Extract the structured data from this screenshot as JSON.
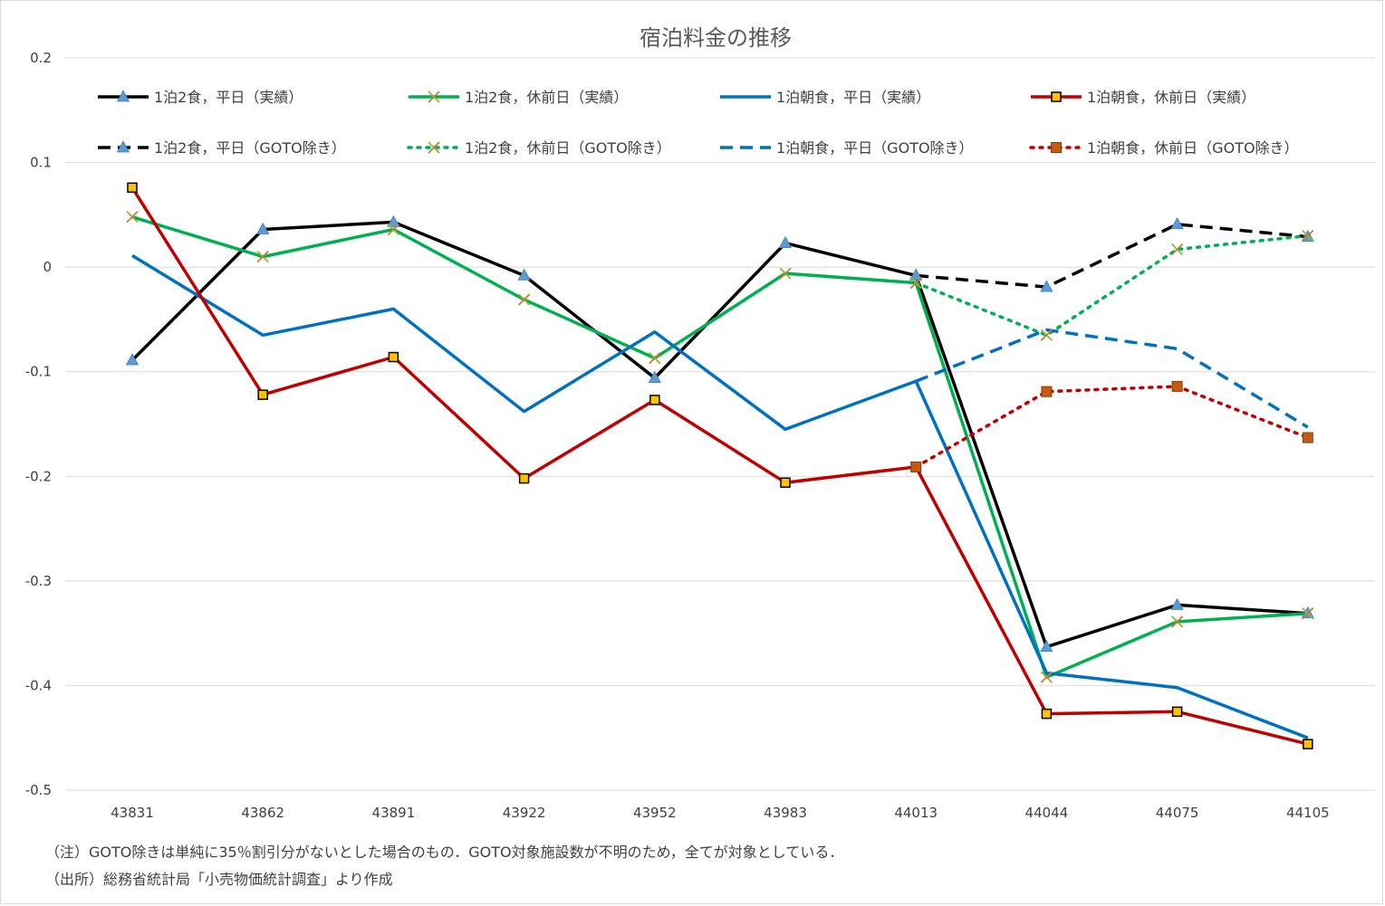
{
  "chart_data": {
    "type": "line",
    "title": "宿泊料金の推移",
    "x": [
      "43831",
      "43862",
      "43891",
      "43922",
      "43952",
      "43983",
      "44013",
      "44044",
      "44075",
      "44105"
    ],
    "ylim": [
      -0.5,
      0.2
    ],
    "yticks": [
      "0.2",
      "0.1",
      "0",
      "-0.1",
      "-0.2",
      "-0.3",
      "-0.4",
      "-0.5"
    ],
    "grid": true,
    "legend_position": "top",
    "series": [
      {
        "name": "1泊2食，平日（実績）",
        "color": "#000000",
        "dash": "solid",
        "marker": "triangle",
        "values": [
          -0.089,
          0.036,
          0.043,
          -0.008,
          -0.106,
          0.023,
          -0.008,
          -0.363,
          -0.323,
          -0.331
        ]
      },
      {
        "name": "1泊2食，休前日（実績）",
        "color": "#00b050",
        "dash": "solid",
        "marker": "x",
        "values": [
          0.048,
          0.01,
          0.036,
          -0.031,
          -0.087,
          -0.006,
          -0.015,
          -0.392,
          -0.339,
          -0.331
        ]
      },
      {
        "name": "1泊朝食，平日（実績）",
        "color": "#0070c0",
        "dash": "solid",
        "marker": "none",
        "values": [
          0.011,
          -0.065,
          -0.04,
          -0.138,
          -0.062,
          -0.155,
          -0.109,
          -0.388,
          -0.402,
          -0.45
        ]
      },
      {
        "name": "1泊朝食，休前日（実績）",
        "color": "#c00000",
        "dash": "solid",
        "marker": "square-yellow",
        "values": [
          0.076,
          -0.122,
          -0.086,
          -0.202,
          -0.127,
          -0.206,
          -0.191,
          -0.427,
          -0.425,
          -0.456
        ]
      },
      {
        "name": "1泊2食，平日（GOTO除き）",
        "color": "#000000",
        "dash": "dash",
        "marker": "triangle",
        "values": [
          null,
          null,
          null,
          null,
          null,
          null,
          -0.008,
          -0.019,
          0.041,
          0.029
        ]
      },
      {
        "name": "1泊2食，休前日（GOTO除き）",
        "color": "#00b050",
        "dash": "dot",
        "marker": "x",
        "values": [
          null,
          null,
          null,
          null,
          null,
          null,
          -0.015,
          -0.065,
          0.017,
          0.03
        ]
      },
      {
        "name": "1泊朝食，平日（GOTO除き）",
        "color": "#0070c0",
        "dash": "dash",
        "marker": "none",
        "values": [
          null,
          null,
          null,
          null,
          null,
          null,
          -0.109,
          -0.06,
          -0.078,
          -0.153
        ]
      },
      {
        "name": "1泊朝食，休前日（GOTO除き）",
        "color": "#c00000",
        "dash": "dot",
        "marker": "square-brown",
        "values": [
          null,
          null,
          null,
          null,
          null,
          null,
          -0.191,
          -0.119,
          -0.114,
          -0.163
        ]
      }
    ]
  },
  "notes": {
    "note": "（注）GOTO除きは単純に35％割引分がないとした場合のもの．GOTO対象施設数が不明のため，全てが対象としている．",
    "source": "（出所）総務省統計局「小売物価統計調査」より作成"
  }
}
